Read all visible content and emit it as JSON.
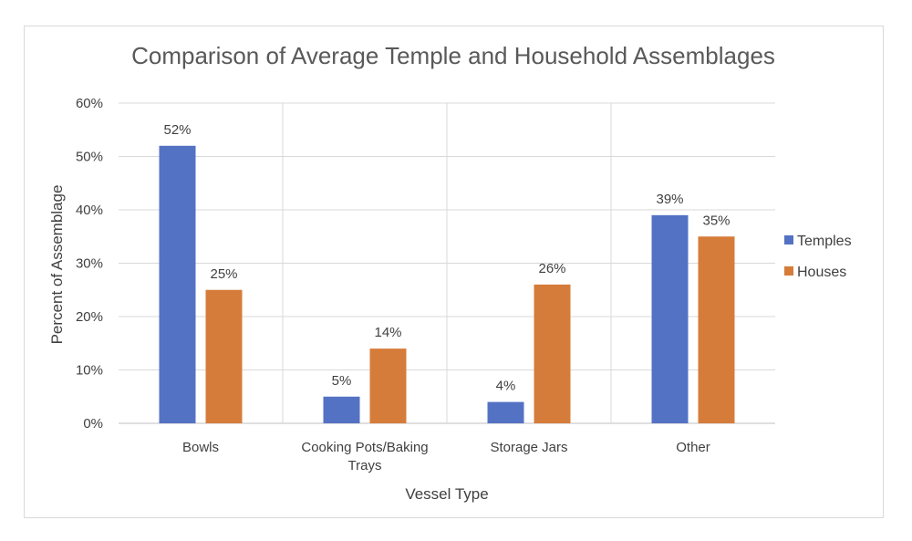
{
  "chart_data": {
    "type": "bar",
    "title": "Comparison of Average Temple and Household Assemblages",
    "xlabel": "Vessel Type",
    "ylabel": "Percent of Assemblage",
    "categories": [
      [
        "Bowls"
      ],
      [
        "Cooking Pots/Baking",
        "Trays"
      ],
      [
        "Storage Jars"
      ],
      [
        "Other"
      ]
    ],
    "series": [
      {
        "name": "Temples",
        "values": [
          52,
          5,
          4,
          39
        ],
        "labels": [
          "52%",
          "5%",
          "4%",
          "39%"
        ],
        "color": "#5472c4"
      },
      {
        "name": "Houses",
        "values": [
          25,
          14,
          26,
          35
        ],
        "labels": [
          "25%",
          "14%",
          "26%",
          "35%"
        ],
        "color": "#d67c3a"
      }
    ],
    "ylim": [
      0,
      60
    ],
    "yticks": [
      0,
      10,
      20,
      30,
      40,
      50,
      60
    ],
    "ytick_labels": [
      "0%",
      "10%",
      "20%",
      "30%",
      "40%",
      "50%",
      "60%"
    ],
    "grid": true,
    "legend_position": "right",
    "colors": {
      "gridline": "#d9d9d9",
      "axis": "#bfbfbf"
    }
  }
}
